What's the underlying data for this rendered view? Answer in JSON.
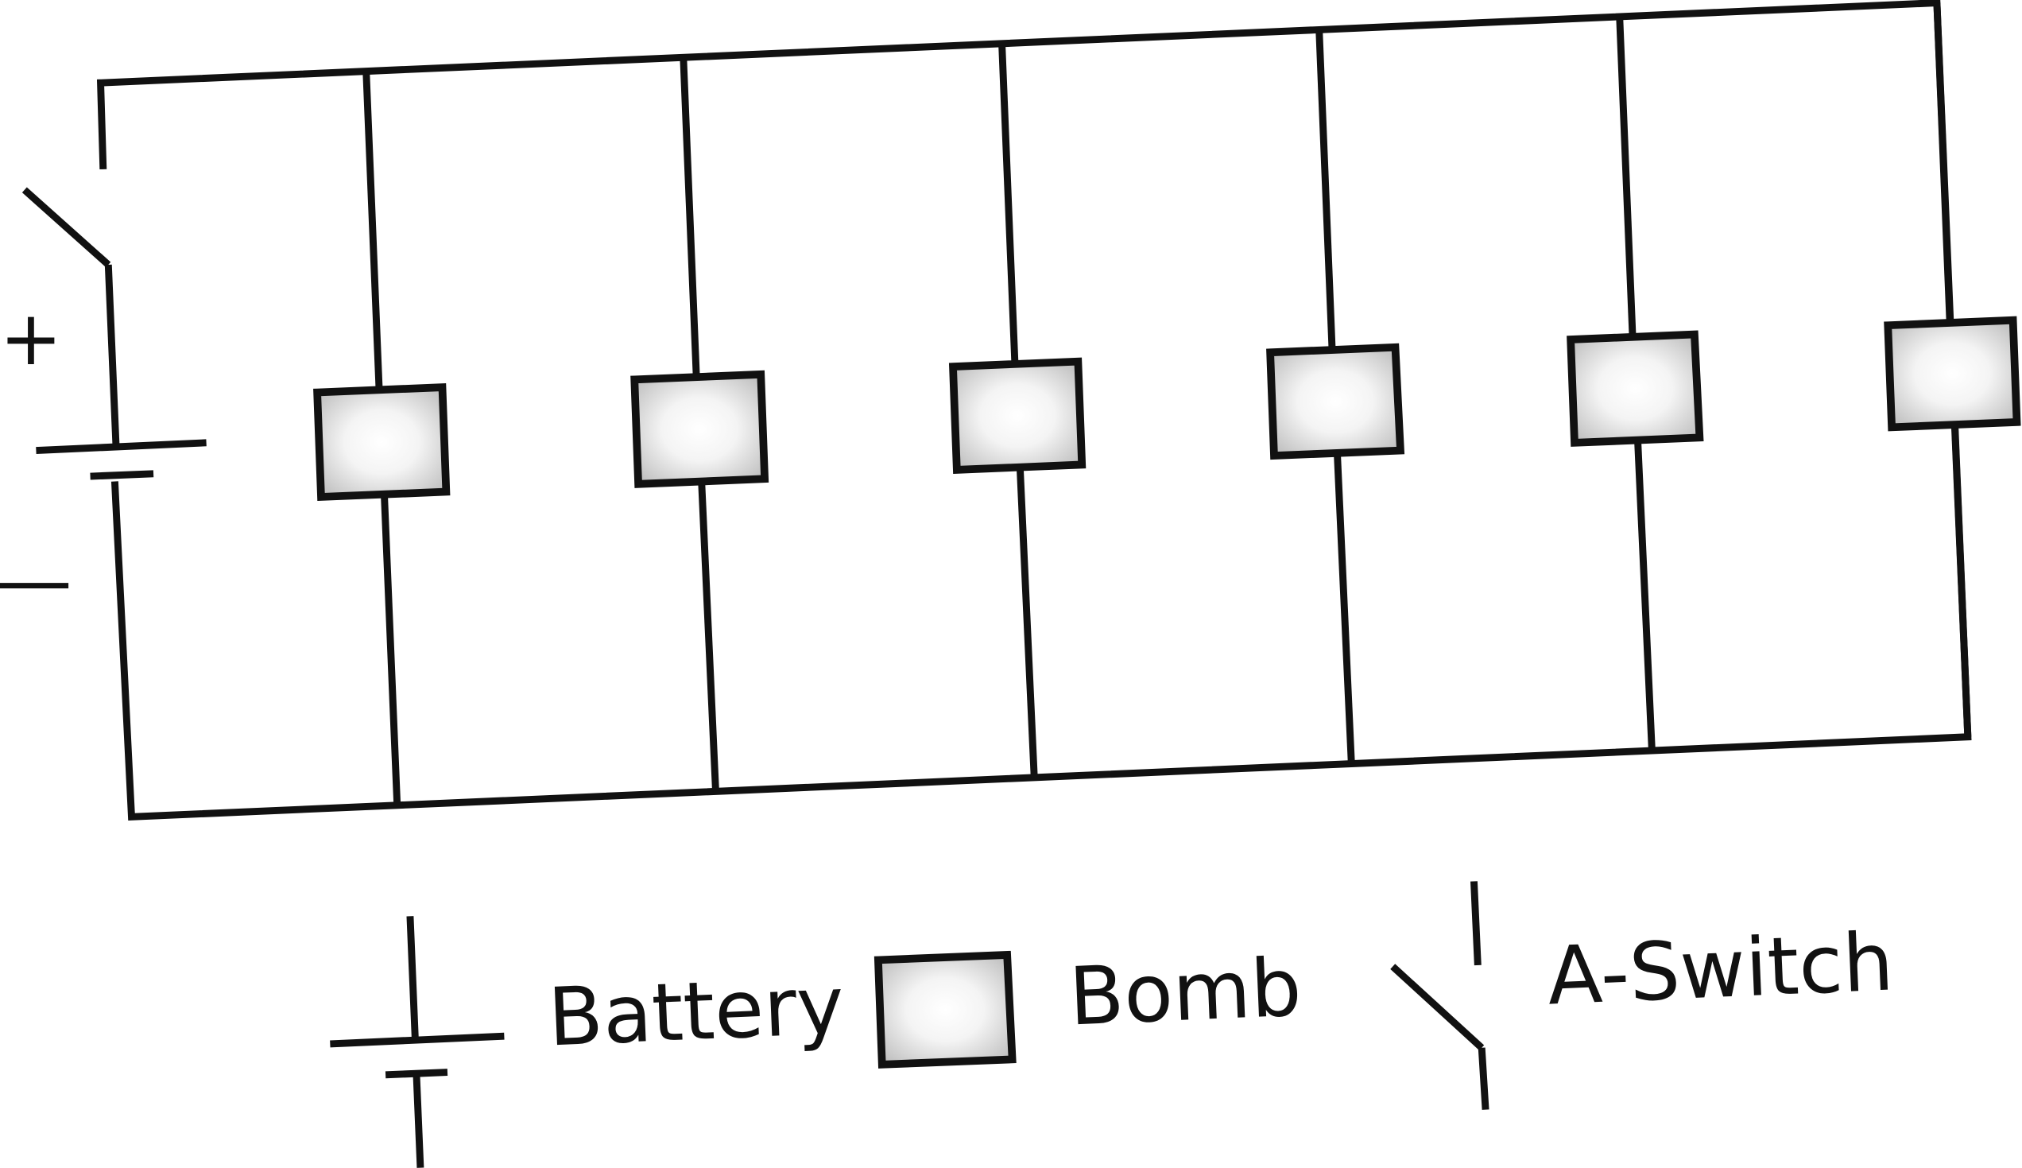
{
  "circuit": {
    "terminal_positive": "+",
    "terminal_negative": "—",
    "bomb_count": 6
  },
  "legend": {
    "battery_label": "Battery",
    "bomb_label": "Bomb",
    "switch_label": "A-Switch"
  },
  "colors": {
    "wire": "#111111",
    "bomb_center": "#ffffff",
    "bomb_edge": "#b4b4b4"
  }
}
